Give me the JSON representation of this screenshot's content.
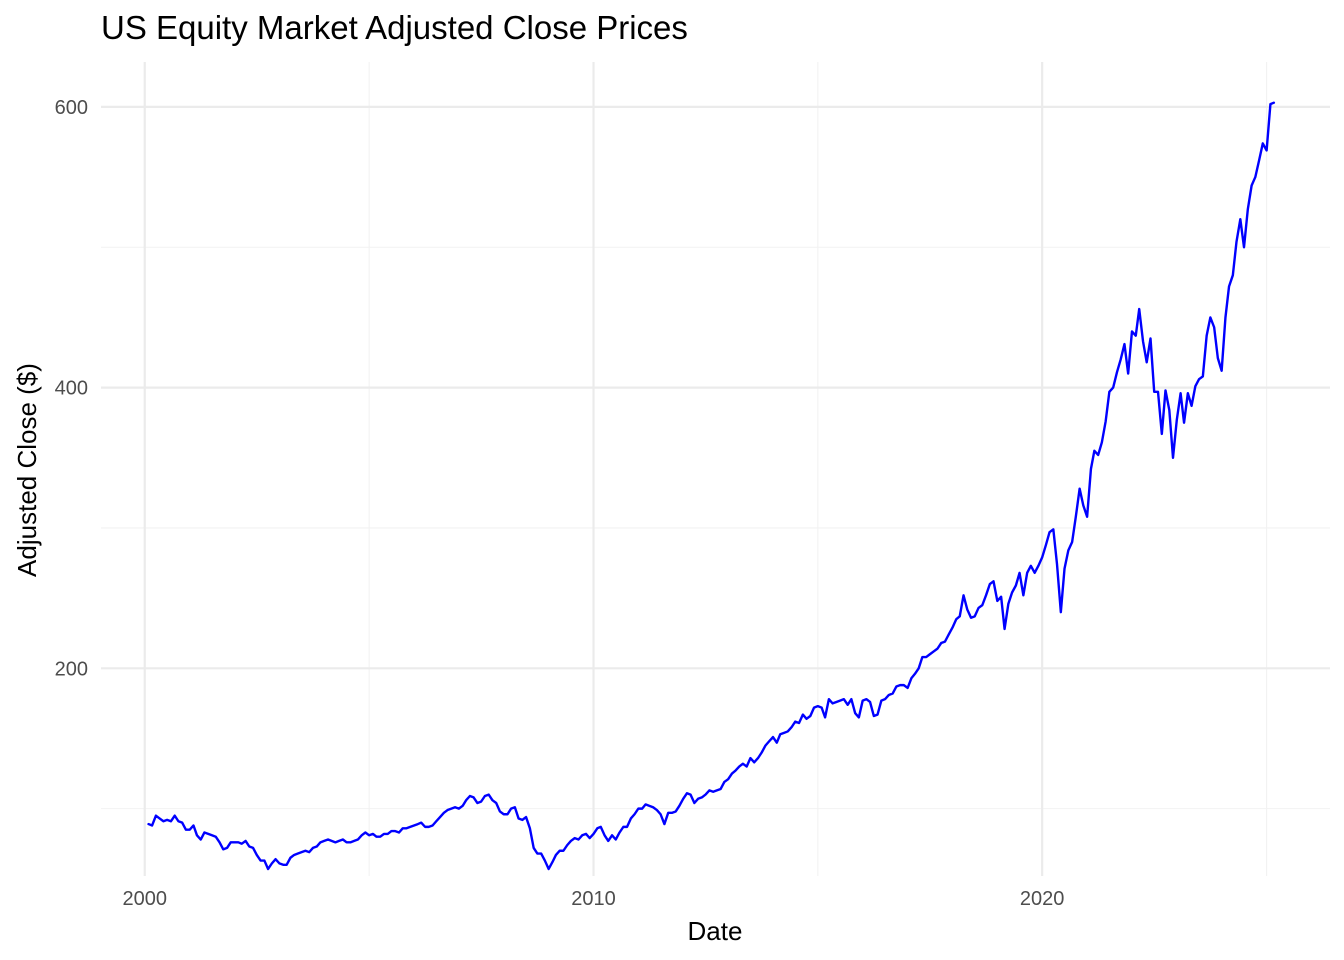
{
  "chart_data": {
    "type": "line",
    "title": "US Equity Market Adjusted Close Prices",
    "xlabel": "Date",
    "ylabel": "Adjusted Close ($)",
    "x_is_date": true,
    "xlim": [
      "1999-01-10",
      "2026-06-01"
    ],
    "ylim": [
      52,
      632
    ],
    "x_major_ticks": [
      {
        "date": "2000-01-01",
        "label": "2000"
      },
      {
        "date": "2010-01-01",
        "label": "2010"
      },
      {
        "date": "2020-01-01",
        "label": "2020"
      }
    ],
    "x_minor_ticks": [
      "2005-01-01",
      "2015-01-01",
      "2025-01-01"
    ],
    "y_major_ticks": [
      200,
      400,
      600
    ],
    "y_minor_ticks": [
      100,
      300,
      500
    ],
    "grid": true,
    "legend": "none",
    "line_color": "#0000ff",
    "series": [
      {
        "x": [
          "2000-02-01",
          "2000-03-01",
          "2000-04-01",
          "2000-05-01",
          "2000-06-01",
          "2000-07-01",
          "2000-08-01",
          "2000-09-01",
          "2000-10-01",
          "2000-11-01",
          "2000-12-01",
          "2001-01-01",
          "2001-02-01",
          "2001-03-01",
          "2001-04-01",
          "2001-05-01",
          "2001-06-01",
          "2001-07-01",
          "2001-08-01",
          "2001-09-01",
          "2001-10-01",
          "2001-11-01",
          "2001-12-01",
          "2002-01-01",
          "2002-02-01",
          "2002-03-01",
          "2002-04-01",
          "2002-05-01",
          "2002-06-01",
          "2002-07-01",
          "2002-08-01",
          "2002-09-01",
          "2002-10-01",
          "2002-11-01",
          "2002-12-01",
          "2003-01-01",
          "2003-02-01",
          "2003-03-01",
          "2003-04-01",
          "2003-05-01",
          "2003-06-01",
          "2003-07-01",
          "2003-08-01",
          "2003-09-01",
          "2003-10-01",
          "2003-11-01",
          "2003-12-01",
          "2004-01-01",
          "2004-02-01",
          "2004-03-01",
          "2004-04-01",
          "2004-05-01",
          "2004-06-01",
          "2004-07-01",
          "2004-08-01",
          "2004-09-01",
          "2004-10-01",
          "2004-11-01",
          "2004-12-01",
          "2005-01-01",
          "2005-02-01",
          "2005-03-01",
          "2005-04-01",
          "2005-05-01",
          "2005-06-01",
          "2005-07-01",
          "2005-08-01",
          "2005-09-01",
          "2005-10-01",
          "2005-11-01",
          "2005-12-01",
          "2006-01-01",
          "2006-02-01",
          "2006-03-01",
          "2006-04-01",
          "2006-05-01",
          "2006-06-01",
          "2006-07-01",
          "2006-08-01",
          "2006-09-01",
          "2006-10-01",
          "2006-11-01",
          "2006-12-01",
          "2007-01-01",
          "2007-02-01",
          "2007-03-01",
          "2007-04-01",
          "2007-05-01",
          "2007-06-01",
          "2007-07-01",
          "2007-08-01",
          "2007-09-01",
          "2007-10-01",
          "2007-11-01",
          "2007-12-01",
          "2008-01-01",
          "2008-02-01",
          "2008-03-01",
          "2008-04-01",
          "2008-05-01",
          "2008-06-01",
          "2008-07-01",
          "2008-08-01",
          "2008-09-01",
          "2008-10-01",
          "2008-11-01",
          "2008-12-01",
          "2009-01-01",
          "2009-02-01",
          "2009-03-01",
          "2009-04-01",
          "2009-05-01",
          "2009-06-01",
          "2009-07-01",
          "2009-08-01",
          "2009-09-01",
          "2009-10-01",
          "2009-11-01",
          "2009-12-01",
          "2010-01-01",
          "2010-02-01",
          "2010-03-01",
          "2010-04-01",
          "2010-05-01",
          "2010-06-01",
          "2010-07-01",
          "2010-08-01",
          "2010-09-01",
          "2010-10-01",
          "2010-11-01",
          "2010-12-01",
          "2011-01-01",
          "2011-02-01",
          "2011-03-01",
          "2011-04-01",
          "2011-05-01",
          "2011-06-01",
          "2011-07-01",
          "2011-08-01",
          "2011-09-01",
          "2011-10-01",
          "2011-11-01",
          "2011-12-01",
          "2012-01-01",
          "2012-02-01",
          "2012-03-01",
          "2012-04-01",
          "2012-05-01",
          "2012-06-01",
          "2012-07-01",
          "2012-08-01",
          "2012-09-01",
          "2012-10-01",
          "2012-11-01",
          "2012-12-01",
          "2013-01-01",
          "2013-02-01",
          "2013-03-01",
          "2013-04-01",
          "2013-05-01",
          "2013-06-01",
          "2013-07-01",
          "2013-08-01",
          "2013-09-01",
          "2013-10-01",
          "2013-11-01",
          "2013-12-01",
          "2014-01-01",
          "2014-02-01",
          "2014-03-01",
          "2014-04-01",
          "2014-05-01",
          "2014-06-01",
          "2014-07-01",
          "2014-08-01",
          "2014-09-01",
          "2014-10-01",
          "2014-11-01",
          "2014-12-01",
          "2015-01-01",
          "2015-02-01",
          "2015-03-01",
          "2015-04-01",
          "2015-05-01",
          "2015-06-01",
          "2015-07-01",
          "2015-08-01",
          "2015-09-01",
          "2015-10-01",
          "2015-11-01",
          "2015-12-01",
          "2016-01-01",
          "2016-02-01",
          "2016-03-01",
          "2016-04-01",
          "2016-05-01",
          "2016-06-01",
          "2016-07-01",
          "2016-08-01",
          "2016-09-01",
          "2016-10-01",
          "2016-11-01",
          "2016-12-01",
          "2017-01-01",
          "2017-02-01",
          "2017-03-01",
          "2017-04-01",
          "2017-05-01",
          "2017-06-01",
          "2017-07-01",
          "2017-08-01",
          "2017-09-01",
          "2017-10-01",
          "2017-11-01",
          "2017-12-01",
          "2018-01-01",
          "2018-02-01",
          "2018-03-01",
          "2018-04-01",
          "2018-05-01",
          "2018-06-01",
          "2018-07-01",
          "2018-08-01",
          "2018-09-01",
          "2018-10-01",
          "2018-11-01",
          "2018-12-01",
          "2019-01-01",
          "2019-02-01",
          "2019-03-01",
          "2019-04-01",
          "2019-05-01",
          "2019-06-01",
          "2019-07-01",
          "2019-08-01",
          "2019-09-01",
          "2019-10-01",
          "2019-11-01",
          "2019-12-01",
          "2020-01-01",
          "2020-02-01",
          "2020-03-01",
          "2020-04-01",
          "2020-05-01",
          "2020-06-01",
          "2020-07-01",
          "2020-08-01",
          "2020-09-01",
          "2020-10-01",
          "2020-11-01",
          "2020-12-01",
          "2021-01-01",
          "2021-02-01",
          "2021-03-01",
          "2021-04-01",
          "2021-05-01",
          "2021-06-01",
          "2021-07-01",
          "2021-08-01",
          "2021-09-01",
          "2021-10-01",
          "2021-11-01",
          "2021-12-01",
          "2022-01-01",
          "2022-02-01",
          "2022-03-01",
          "2022-04-01",
          "2022-05-01",
          "2022-06-01",
          "2022-07-01",
          "2022-08-01",
          "2022-09-01",
          "2022-10-01",
          "2022-11-01",
          "2022-12-01",
          "2023-01-01",
          "2023-02-01",
          "2023-03-01",
          "2023-04-01",
          "2023-05-01",
          "2023-06-01",
          "2023-07-01",
          "2023-08-01",
          "2023-09-01",
          "2023-10-01",
          "2023-11-01",
          "2023-12-01",
          "2024-01-01",
          "2024-02-01",
          "2024-03-01",
          "2024-04-01",
          "2024-05-01",
          "2024-06-01",
          "2024-07-01",
          "2024-08-01",
          "2024-09-01",
          "2024-10-01",
          "2024-11-01",
          "2024-12-01",
          "2025-01-01",
          "2025-02-01",
          "2025-03-01"
        ],
        "y": [
          89,
          88,
          95,
          93,
          91,
          92,
          91,
          95,
          91,
          90,
          85,
          85,
          88,
          81,
          78,
          83,
          82,
          81,
          80,
          76,
          71,
          72,
          76,
          76,
          76,
          75,
          77,
          73,
          72,
          67,
          63,
          63,
          57,
          61,
          64,
          61,
          60,
          60,
          65,
          67,
          68,
          69,
          70,
          69,
          72,
          73,
          76,
          77,
          78,
          77,
          76,
          77,
          78,
          76,
          76,
          77,
          78,
          81,
          83,
          81,
          82,
          80,
          80,
          82,
          82,
          84,
          84,
          83,
          86,
          86,
          87,
          88,
          89,
          90,
          87,
          87,
          88,
          91,
          94,
          97,
          99,
          100,
          101,
          100,
          102,
          106,
          109,
          108,
          104,
          105,
          109,
          110,
          106,
          104,
          98,
          96,
          96,
          100,
          101,
          93,
          92,
          94,
          86,
          72,
          68,
          68,
          63,
          57,
          62,
          67,
          70,
          70,
          74,
          77,
          79,
          78,
          81,
          82,
          79,
          82,
          86,
          87,
          81,
          77,
          81,
          78,
          83,
          87,
          87,
          93,
          96,
          100,
          100,
          103,
          102,
          101,
          99,
          96,
          89,
          97,
          97,
          98,
          102,
          107,
          111,
          110,
          104,
          107,
          108,
          110,
          113,
          112,
          113,
          114,
          119,
          121,
          125,
          127,
          130,
          132,
          130,
          136,
          133,
          136,
          140,
          145,
          148,
          151,
          147,
          153,
          154,
          155,
          158,
          162,
          161,
          167,
          164,
          166,
          172,
          173,
          172,
          165,
          178,
          175,
          176,
          177,
          178,
          174,
          178,
          168,
          165,
          177,
          178,
          176,
          166,
          167,
          177,
          178,
          181,
          182,
          187,
          188,
          188,
          186,
          193,
          196,
          200,
          208,
          208,
          210,
          212,
          214,
          218,
          219,
          224,
          229,
          235,
          237,
          252,
          242,
          236,
          237,
          243,
          245,
          252,
          260,
          262,
          248,
          251,
          228,
          246,
          254,
          259,
          268,
          252,
          268,
          273,
          268,
          273,
          279,
          288,
          297,
          299,
          274,
          240,
          271,
          284,
          290,
          308,
          328,
          316,
          308,
          342,
          355,
          352,
          361,
          376,
          397,
          400,
          411,
          420,
          431,
          410,
          440,
          437,
          456,
          433,
          418,
          435,
          397,
          397,
          367,
          398,
          384,
          350,
          377,
          396,
          375,
          396,
          387,
          401,
          406,
          408,
          437,
          450,
          443,
          421,
          412,
          450,
          472,
          480,
          504,
          520,
          500,
          527,
          544,
          550,
          562,
          574,
          569,
          602,
          603
        ]
      }
    ]
  }
}
